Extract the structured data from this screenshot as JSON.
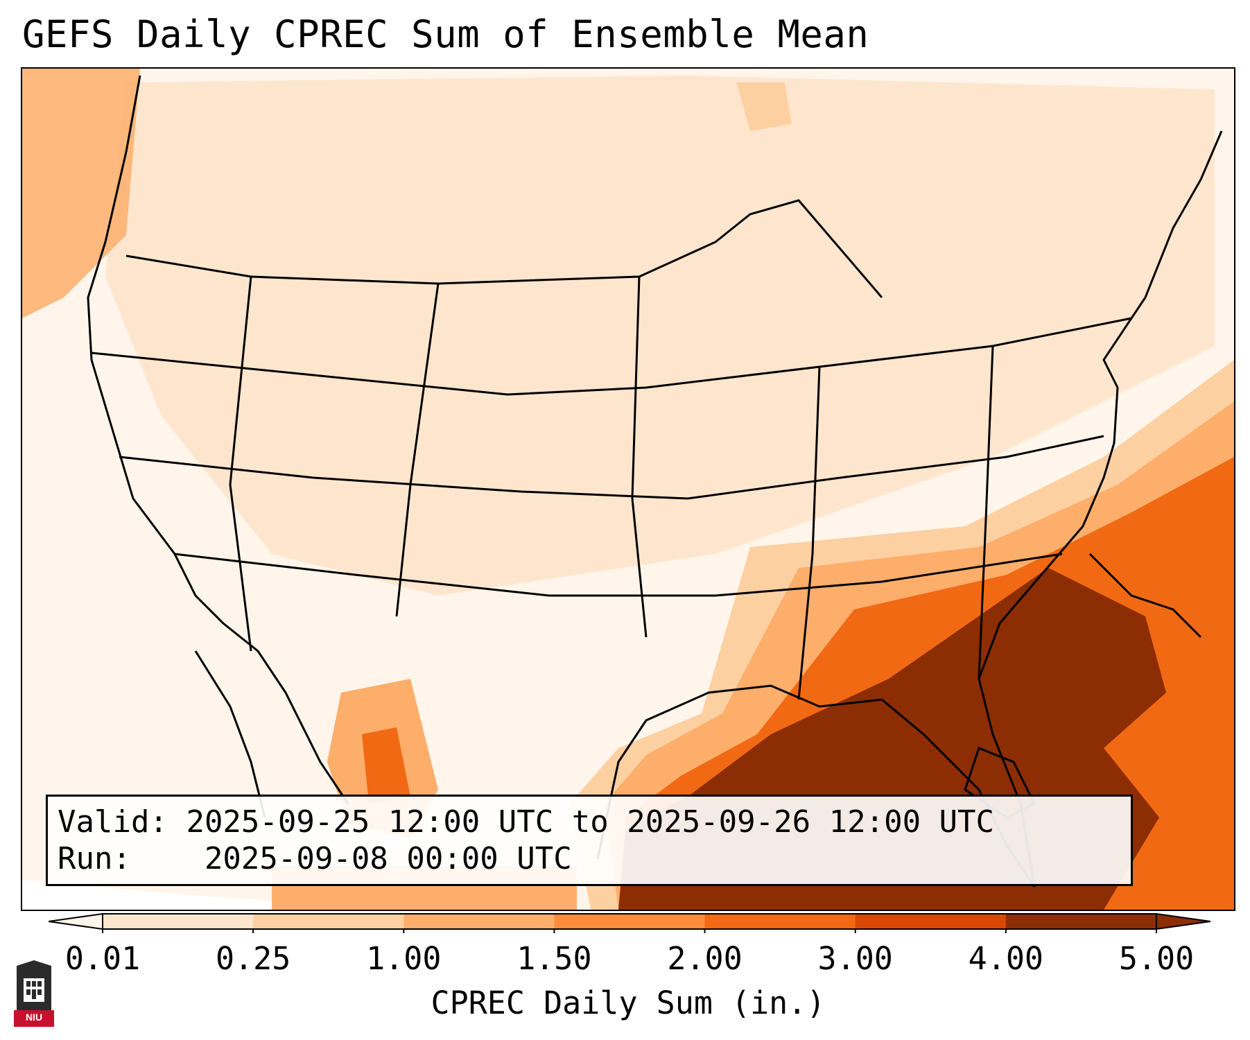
{
  "title": "GEFS Daily CPREC Sum of Ensemble Mean",
  "info": {
    "valid_label": "Valid:",
    "valid_value": "2025-09-25 12:00 UTC to 2025-09-26 12:00 UTC",
    "run_label": "Run:",
    "run_value": "2025-09-08 00:00 UTC"
  },
  "colorbar": {
    "label": "CPREC Daily Sum (in.)",
    "ticks": [
      "0.01",
      "0.25",
      "1.00",
      "1.50",
      "2.00",
      "3.00",
      "4.00",
      "5.00"
    ],
    "colors": [
      "#fff5eb",
      "#fee6ce",
      "#fdd0a2",
      "#fdae6b",
      "#fd8d3c",
      "#f16913",
      "#d94801",
      "#8c2d04"
    ],
    "extend": "both"
  },
  "map": {
    "region": "CONUS",
    "shading_colors": {
      "lightest": "#fff5eb",
      "light": "#fee6ce",
      "mid": "#fdd0a2",
      "orange": "#fdae6b",
      "deep_orange": "#f16913",
      "darkest": "#8c2d04"
    }
  },
  "logo": {
    "text": "NIU"
  }
}
